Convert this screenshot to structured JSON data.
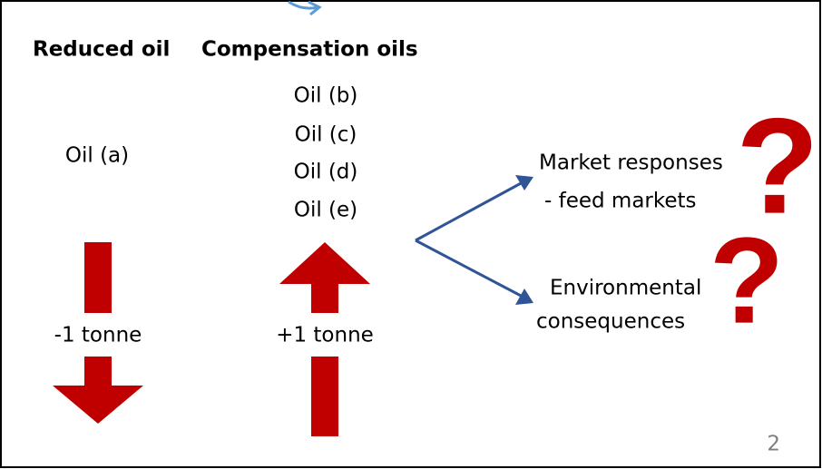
{
  "headings": {
    "reduced": "Reduced oil",
    "compensation": "Compensation oils"
  },
  "reduced_oil": {
    "name": "Oil (a)",
    "change": "-1 tonne"
  },
  "compensation_oils": {
    "names": [
      "Oil (b)",
      "Oil (c)",
      "Oil (d)",
      "Oil (e)"
    ],
    "change": "+1 tonne"
  },
  "outcomes": [
    {
      "lines": [
        "Market responses",
        "- feed markets"
      ],
      "mark": "?"
    },
    {
      "lines": [
        "Environmental",
        "consequences"
      ],
      "mark": "?"
    }
  ],
  "page_number": "2"
}
